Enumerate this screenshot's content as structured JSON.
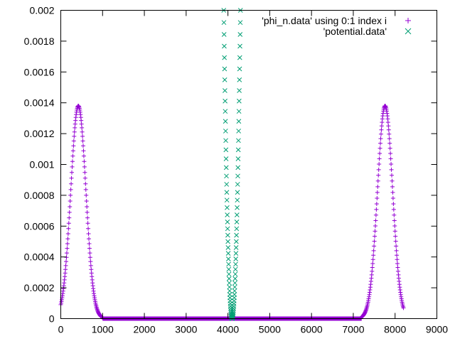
{
  "chart_data": {
    "type": "scatter",
    "title": "",
    "xlabel": "",
    "ylabel": "",
    "xlim": [
      0,
      9000
    ],
    "ylim": [
      0,
      0.002
    ],
    "x_ticks": [
      "0",
      "1000",
      "2000",
      "3000",
      "4000",
      "5000",
      "6000",
      "7000",
      "8000",
      "9000"
    ],
    "y_ticks": [
      "0",
      "0.0002",
      "0.0004",
      "0.0006",
      "0.0008",
      "0.001",
      "0.0012",
      "0.0014",
      "0.0016",
      "0.0018",
      "0.002"
    ],
    "grid": false,
    "legend_position": "top-right",
    "series": [
      {
        "name": "'phi_n.data' using 0:1 index i",
        "marker": "plus",
        "color": "#9400d3",
        "peaks": [
          {
            "center": 420,
            "height": 0.00138,
            "width": 180,
            "support": [
              0,
              1000
            ]
          },
          {
            "center": 7760,
            "height": 0.00138,
            "width": 180,
            "support": [
              7200,
              8200
            ]
          }
        ],
        "x_range": [
          0,
          8200
        ],
        "step": 8
      },
      {
        "name": "'potential.data'",
        "marker": "cross",
        "color": "#009e73",
        "shape": "quadratic-well",
        "center": 4100,
        "minimum": 0,
        "reaches_top_at": [
          3900,
          4300
        ],
        "x_range": [
          3880,
          4320
        ],
        "step": 4
      }
    ]
  }
}
